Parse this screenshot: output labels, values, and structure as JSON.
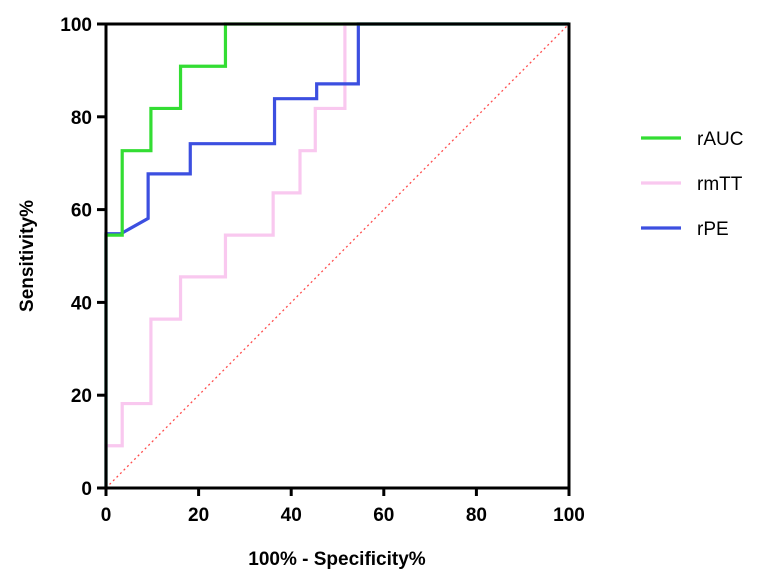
{
  "chart_data": {
    "type": "line",
    "title": "",
    "xlabel": "100% - Specificity%",
    "ylabel": "Sensitivity%",
    "xlim": [
      0,
      100
    ],
    "ylim": [
      0,
      100
    ],
    "xticks": [
      "0",
      "20",
      "40",
      "60",
      "80",
      "100"
    ],
    "yticks": [
      "0",
      "20",
      "40",
      "60",
      "80",
      "100"
    ],
    "legend_position": "right",
    "reference_line": {
      "name": "reference",
      "color": "#ff4d4d",
      "style": "dotted",
      "x": [
        0,
        100
      ],
      "y": [
        0,
        100
      ]
    },
    "series": [
      {
        "name": "rAUC",
        "color": "#33dd33",
        "x": [
          0,
          0,
          3.5,
          3.5,
          9.7,
          9.7,
          16.1,
          16.1,
          25.8,
          25.8,
          100
        ],
        "y": [
          0,
          54.5,
          54.5,
          72.7,
          72.7,
          81.8,
          81.8,
          90.9,
          90.9,
          100,
          100
        ]
      },
      {
        "name": "rmTT",
        "color": "#f9c8ef",
        "x": [
          0,
          0,
          3.5,
          3.5,
          9.7,
          9.7,
          16.1,
          16.1,
          25.8,
          25.8,
          36.1,
          36.1,
          41.9,
          41.9,
          45.2,
          45.2,
          51.6,
          51.6,
          100
        ],
        "y": [
          0,
          9.1,
          9.1,
          18.2,
          18.2,
          36.4,
          36.4,
          45.5,
          45.5,
          54.5,
          54.5,
          63.6,
          63.6,
          72.7,
          72.7,
          81.8,
          81.8,
          100,
          100
        ]
      },
      {
        "name": "rPE",
        "color": "#3c4fe0",
        "x": [
          0,
          0,
          3.2,
          9.1,
          9.1,
          18.2,
          18.2,
          36.4,
          36.4,
          45.5,
          45.5,
          54.5,
          54.5,
          100
        ],
        "y": [
          0,
          54.8,
          54.8,
          58.1,
          67.7,
          67.7,
          74.2,
          74.2,
          83.9,
          83.9,
          87.1,
          87.1,
          100,
          100
        ]
      }
    ]
  }
}
